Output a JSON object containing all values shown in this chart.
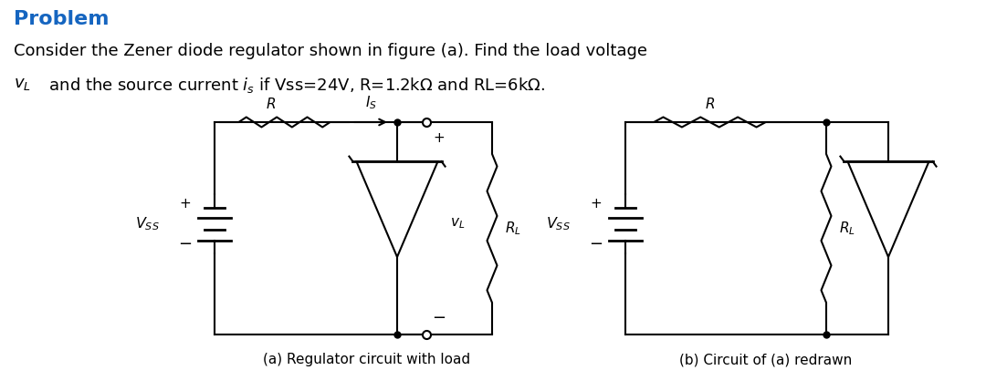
{
  "title": "Problem",
  "title_color": "#1565c0",
  "bg_color": "#ffffff",
  "line1": "Consider the Zener diode regulator shown in figure (a). Find the load voltage",
  "caption_a": "(a) Regulator circuit with load",
  "caption_b": "(b) Circuit of (a) redrawn",
  "lw": 1.5
}
